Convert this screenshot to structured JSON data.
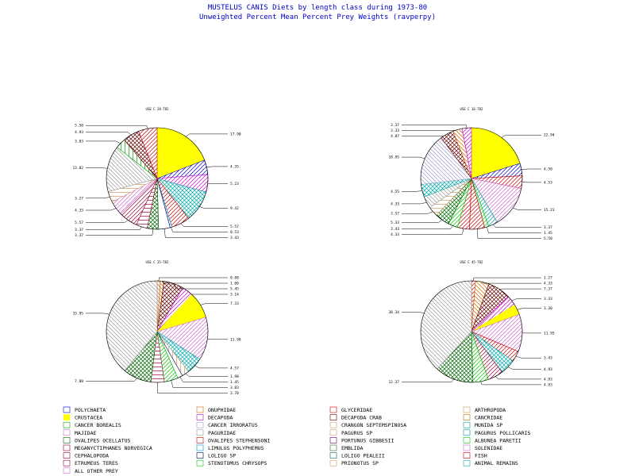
{
  "header": {
    "title": "MUSTELUS CANIS Diets by length class during 1973-80",
    "subtitle": "Unweighted Percent Mean Percent Prey Weights (ravperpy)"
  },
  "categories": [
    {
      "name": "POLYCHAETA",
      "color": "#0000cc",
      "pattern": "diag-r"
    },
    {
      "name": "ONUPHIDAE",
      "color": "#cc6600",
      "pattern": "diag-l"
    },
    {
      "name": "GLYCERIDAE",
      "color": "#cc0000",
      "pattern": "none"
    },
    {
      "name": "ARTHROPODA",
      "color": "#cc9966",
      "pattern": "none"
    },
    {
      "name": "CRUSTACEA",
      "color": "#ffff00",
      "pattern": "solid"
    },
    {
      "name": "DECAPODA",
      "color": "#cc00cc",
      "pattern": "diag-r"
    },
    {
      "name": "DECAPODA CRAB",
      "color": "#660000",
      "pattern": "cross-diag"
    },
    {
      "name": "CANCRIDAE",
      "color": "#cc6600",
      "pattern": "diag-l"
    },
    {
      "name": "CANCER BOREALIS",
      "color": "#00aa00",
      "pattern": "vert"
    },
    {
      "name": "CANCER IRRORATUS",
      "color": "#9999cc",
      "pattern": "diag-l"
    },
    {
      "name": "CRANGON SEPTEMSPINOSA",
      "color": "#cc9966",
      "pattern": "horiz"
    },
    {
      "name": "MUNIDA SP",
      "color": "#009999",
      "pattern": "diag-r"
    },
    {
      "name": "MAJIDAE",
      "color": "#cc66cc",
      "pattern": "diag-r"
    },
    {
      "name": "PAGURIDAE",
      "color": "#999999",
      "pattern": "diag-l"
    },
    {
      "name": "PAGURUS SP",
      "color": "#cc9966",
      "pattern": "vert"
    },
    {
      "name": "PAGURUS POLLICARIS",
      "color": "#009999",
      "pattern": "diag-r"
    },
    {
      "name": "OVALIPES OCELLATUS",
      "color": "#006600",
      "pattern": "cross-diag"
    },
    {
      "name": "OVALIPES STEPHENSONI",
      "color": "#cc0000",
      "pattern": "diag-r"
    },
    {
      "name": "PORTUNUS GIBBESII",
      "color": "#660066",
      "pattern": "vert"
    },
    {
      "name": "ALBUNEA PARETII",
      "color": "#00cc00",
      "pattern": "diag-r"
    },
    {
      "name": "MEGANYCTIPHANES NORVEGICA",
      "color": "#990033",
      "pattern": "diag-l"
    },
    {
      "name": "LIMULUS POLYPHEMUS",
      "color": "#0099cc",
      "pattern": "horiz"
    },
    {
      "name": "EMBLIDA",
      "color": "#336633",
      "pattern": "diag-r"
    },
    {
      "name": "SOLENIDAE",
      "color": "#cc66cc",
      "pattern": "none"
    },
    {
      "name": "CEPHALOPODA",
      "color": "#990033",
      "pattern": "diag-r"
    },
    {
      "name": "LOLIGO SP",
      "color": "#000066",
      "pattern": "none"
    },
    {
      "name": "LOLIGO PEALEII",
      "color": "#006666",
      "pattern": "diag-r"
    },
    {
      "name": "FISH",
      "color": "#cc0000",
      "pattern": "diag-r"
    },
    {
      "name": "ETRUMEUS TERES",
      "color": "#990033",
      "pattern": "horiz"
    },
    {
      "name": "STENOTOMUS CHRYSOPS",
      "color": "#00cc00",
      "pattern": "diag-r"
    },
    {
      "name": "PRIONOTUS SP",
      "color": "#cc9966",
      "pattern": "none"
    },
    {
      "name": "ANIMAL REMAINS",
      "color": "#00aaaa",
      "pattern": "cross-diag"
    },
    {
      "name": "ALL OTHER PREY",
      "color": "#cc66cc",
      "pattern": "none"
    }
  ],
  "chart_data": [
    {
      "type": "pie",
      "title": "USE C 28-T82",
      "slices": [
        {
          "category": "CRUSTACEA",
          "value": 17.9
        },
        {
          "category": "POLYCHAETA",
          "value": 4.35
        },
        {
          "category": "DECAPODA",
          "value": 5.23
        },
        {
          "category": "ANIMAL REMAINS",
          "value": 9.42
        },
        {
          "category": "FISH",
          "value": 5.57
        },
        {
          "category": "LIMULUS POLYPHEMUS",
          "value": 0.53
        },
        {
          "category": "LOLIGO SP",
          "value": 3.43
        },
        {
          "category": "OVALIPES OCELLATUS",
          "value": 3.37
        },
        {
          "category": "ETRUMEUS TERES",
          "value": 3.37
        },
        {
          "category": "CEPHALOPODA",
          "value": 5.57
        },
        {
          "category": "MAJIDAE",
          "value": 4.33
        },
        {
          "category": "CRANGON SEPTEMSPINOSA",
          "value": 3.27
        },
        {
          "category": "PAGURIDAE",
          "value": 13.82
        },
        {
          "category": "CANCER BOREALIS",
          "value": 3.03
        },
        {
          "category": "DECAPODA CRAB",
          "value": 4.93
        },
        {
          "category": "OVALIPES STEPHENSONI",
          "value": 5.58
        }
      ]
    },
    {
      "type": "pie",
      "title": "USE C 16-T82",
      "slices": [
        {
          "category": "CRUSTACEA",
          "value": 22.94
        },
        {
          "category": "POLYCHAETA",
          "value": 4.5
        },
        {
          "category": "OVALIPES STEPHENSONI",
          "value": 4.53
        },
        {
          "category": "MAJIDAE",
          "value": 15.23
        },
        {
          "category": "MUNIDA SP",
          "value": 3.37
        },
        {
          "category": "STENOTOMUS CHRYSOPS",
          "value": 1.45
        },
        {
          "category": "FISH",
          "value": 5.5
        },
        {
          "category": "OVALIPES STEPHENSONI",
          "value": 4.33
        },
        {
          "category": "ALBUNEA PARETII",
          "value": 3.43
        },
        {
          "category": "OVALIPES OCELLATUS",
          "value": 5.33
        },
        {
          "category": "CRANGON SEPTEMSPINOSA",
          "value": 3.57
        },
        {
          "category": "PAGURIDAE",
          "value": 4.33
        },
        {
          "category": "ANIMAL REMAINS",
          "value": 4.55
        },
        {
          "category": "CANCER IRRORATUS",
          "value": 18.95
        },
        {
          "category": "DECAPODA CRAB",
          "value": 4.87
        },
        {
          "category": "CANCRIDAE",
          "value": 3.33
        },
        {
          "category": "DECAPODA",
          "value": 3.37
        }
      ]
    },
    {
      "type": "pie",
      "title": "USE C 25-T82",
      "slices": [
        {
          "category": "ONUPHIDAE",
          "value": 0.88
        },
        {
          "category": "CANCRIDAE",
          "value": 1.0
        },
        {
          "category": "DECAPODA CRAB",
          "value": 5.45
        },
        {
          "category": "DECAPODA",
          "value": 3.14
        },
        {
          "category": "CRUSTACEA",
          "value": 7.33
        },
        {
          "category": "MAJIDAE",
          "value": 11.98
        },
        {
          "category": "ANIMAL REMAINS",
          "value": 4.57
        },
        {
          "category": "PAGURUS SP",
          "value": 1.98
        },
        {
          "category": "LOLIGO SP",
          "value": 1.45
        },
        {
          "category": "STENOTOMUS CHRYSOPS",
          "value": 3.83
        },
        {
          "category": "ETRUMEUS TERES",
          "value": 3.7
        },
        {
          "category": "OVALIPES OCELLATUS",
          "value": 7.88
        },
        {
          "category": "PAGURIDAE",
          "value": 33.95
        }
      ]
    },
    {
      "type": "pie",
      "title": "USE C 45-T82",
      "slices": [
        {
          "category": "OVALIPES STEPHENSONI",
          "value": 1.27
        },
        {
          "category": "CANCRIDAE",
          "value": 4.33
        },
        {
          "category": "DECAPODA CRAB",
          "value": 7.37
        },
        {
          "category": "DECAPODA",
          "value": 3.33
        },
        {
          "category": "CRUSTACEA",
          "value": 3.3
        },
        {
          "category": "MAJIDAE",
          "value": 11.95
        },
        {
          "category": "FISH",
          "value": 3.43
        },
        {
          "category": "ANIMAL REMAINS",
          "value": 4.93
        },
        {
          "category": "CEPHALOPODA",
          "value": 4.93
        },
        {
          "category": "STENOTOMUS CHRYSOPS",
          "value": 4.93
        },
        {
          "category": "OVALIPES OCELLATUS",
          "value": 12.37
        },
        {
          "category": "PAGURIDAE",
          "value": 38.34
        }
      ]
    }
  ]
}
